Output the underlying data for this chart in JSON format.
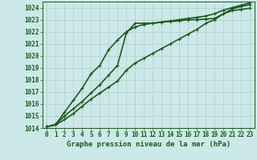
{
  "title": "",
  "xlabel": "Graphe pression niveau de la mer (hPa)",
  "ylabel": "",
  "bg_color": "#cce8e8",
  "grid_color": "#b0cccc",
  "line_color": "#1a5c1a",
  "text_color": "#1a5c1a",
  "xlim": [
    -0.5,
    23.5
  ],
  "ylim": [
    1014.0,
    1024.5
  ],
  "yticks": [
    1014,
    1015,
    1016,
    1017,
    1018,
    1019,
    1020,
    1021,
    1022,
    1023,
    1024
  ],
  "xticks": [
    0,
    1,
    2,
    3,
    4,
    5,
    6,
    7,
    8,
    9,
    10,
    11,
    12,
    13,
    14,
    15,
    16,
    17,
    18,
    19,
    20,
    21,
    22,
    23
  ],
  "series": [
    {
      "x": [
        0,
        1,
        2,
        3,
        4,
        5,
        6,
        7,
        8,
        9,
        10,
        11,
        12,
        13,
        14,
        15,
        16,
        17,
        18,
        19,
        20,
        21,
        22,
        23
      ],
      "y": [
        1014.1,
        1014.3,
        1015.0,
        1015.6,
        1016.2,
        1016.9,
        1017.6,
        1018.4,
        1019.2,
        1021.9,
        1022.7,
        1022.7,
        1022.7,
        1022.8,
        1022.85,
        1022.9,
        1023.0,
        1023.0,
        1023.05,
        1023.1,
        1023.5,
        1023.75,
        1023.85,
        1023.95
      ],
      "linewidth": 1.2,
      "marker": "+"
    },
    {
      "x": [
        0,
        1,
        2,
        3,
        4,
        5,
        6,
        7,
        8,
        9,
        10,
        11,
        12,
        13,
        14,
        15,
        16,
        17,
        18,
        19,
        20,
        21,
        22,
        23
      ],
      "y": [
        1014.1,
        1014.3,
        1015.3,
        1016.3,
        1017.3,
        1018.5,
        1019.2,
        1020.5,
        1021.3,
        1022.0,
        1022.4,
        1022.6,
        1022.7,
        1022.8,
        1022.9,
        1023.0,
        1023.1,
        1023.2,
        1023.3,
        1023.5,
        1023.8,
        1024.0,
        1024.2,
        1024.4
      ],
      "linewidth": 1.2,
      "marker": "+"
    },
    {
      "x": [
        0,
        1,
        2,
        3,
        4,
        5,
        6,
        7,
        8,
        9,
        10,
        11,
        12,
        13,
        14,
        15,
        16,
        17,
        18,
        19,
        20,
        21,
        22,
        23
      ],
      "y": [
        1014.1,
        1014.25,
        1014.7,
        1015.2,
        1015.8,
        1016.4,
        1016.9,
        1017.4,
        1017.9,
        1018.8,
        1019.4,
        1019.8,
        1020.2,
        1020.6,
        1021.0,
        1021.4,
        1021.8,
        1022.2,
        1022.7,
        1023.0,
        1023.5,
        1023.9,
        1024.1,
        1024.25
      ],
      "linewidth": 1.2,
      "marker": "+"
    }
  ]
}
